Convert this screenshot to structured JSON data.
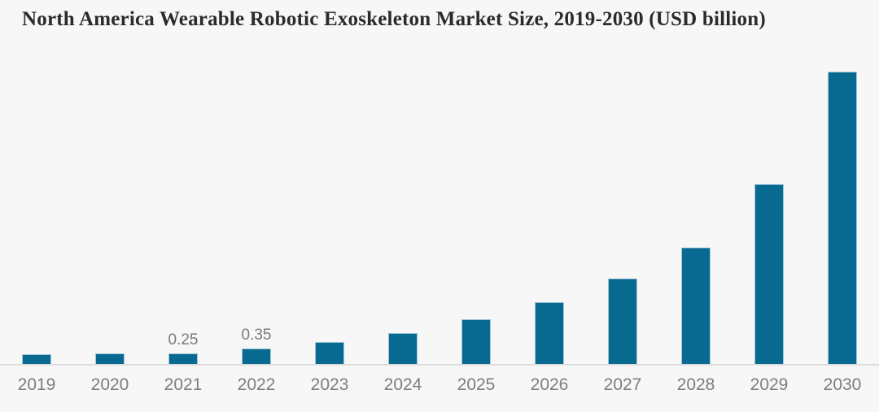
{
  "chart_data": {
    "type": "bar",
    "title": "North America Wearable Robotic Exoskeleton Market Size, 2019-2030 (USD billion)",
    "categories": [
      "2019",
      "2020",
      "2021",
      "2022",
      "2023",
      "2024",
      "2025",
      "2026",
      "2027",
      "2028",
      "2029",
      "2030"
    ],
    "values": [
      0.22,
      0.24,
      0.25,
      0.35,
      0.49,
      0.67,
      0.97,
      1.34,
      1.83,
      2.49,
      3.85,
      6.24
    ],
    "bar_labels": [
      "",
      "",
      "0.25",
      "0.35",
      "",
      "",
      "",
      "",
      "",
      "",
      "",
      ""
    ],
    "xlabel": "",
    "ylabel": "",
    "ylim": [
      0,
      6.5
    ],
    "grid": false,
    "legend": null,
    "colors": {
      "bar": "#086a90",
      "bar_border": "#a3c6d9",
      "axis_line": "#dcdcdc",
      "tick_label": "#7d7d7d",
      "data_label": "#7a7a7a",
      "title": "#2b2b2b",
      "background": "#f7f7f7"
    }
  }
}
